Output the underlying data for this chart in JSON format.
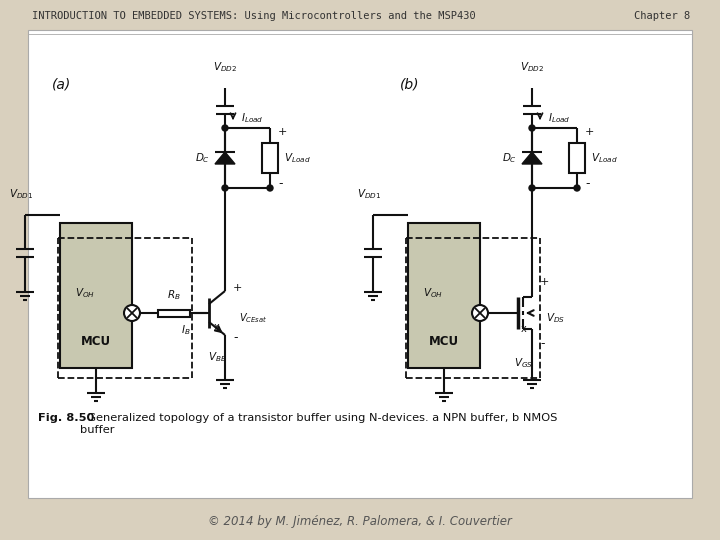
{
  "title_left": "INTRODUCTION TO EMBEDDED SYSTEMS: Using Microcontrollers and the MSP430",
  "title_right": "Chapter 8",
  "caption_bold": "Fig. 8.50",
  "caption_normal": "  Generalized topology of a transistor buffer using N-devices. a NPN buffer, b NMOS\nbuffer",
  "footer": "© 2014 by M. Jiménez, R. Palomera, & I. Couvertier",
  "outer_bg": "#d9d0be",
  "page_bg": "#ffffff",
  "mcu_bg": "#c8c8b0",
  "border_color": "#999999",
  "label_a": "(a)",
  "label_b": "(b)",
  "title_fontsize": 7.5,
  "caption_fontsize": 8.2,
  "footer_fontsize": 8.5
}
